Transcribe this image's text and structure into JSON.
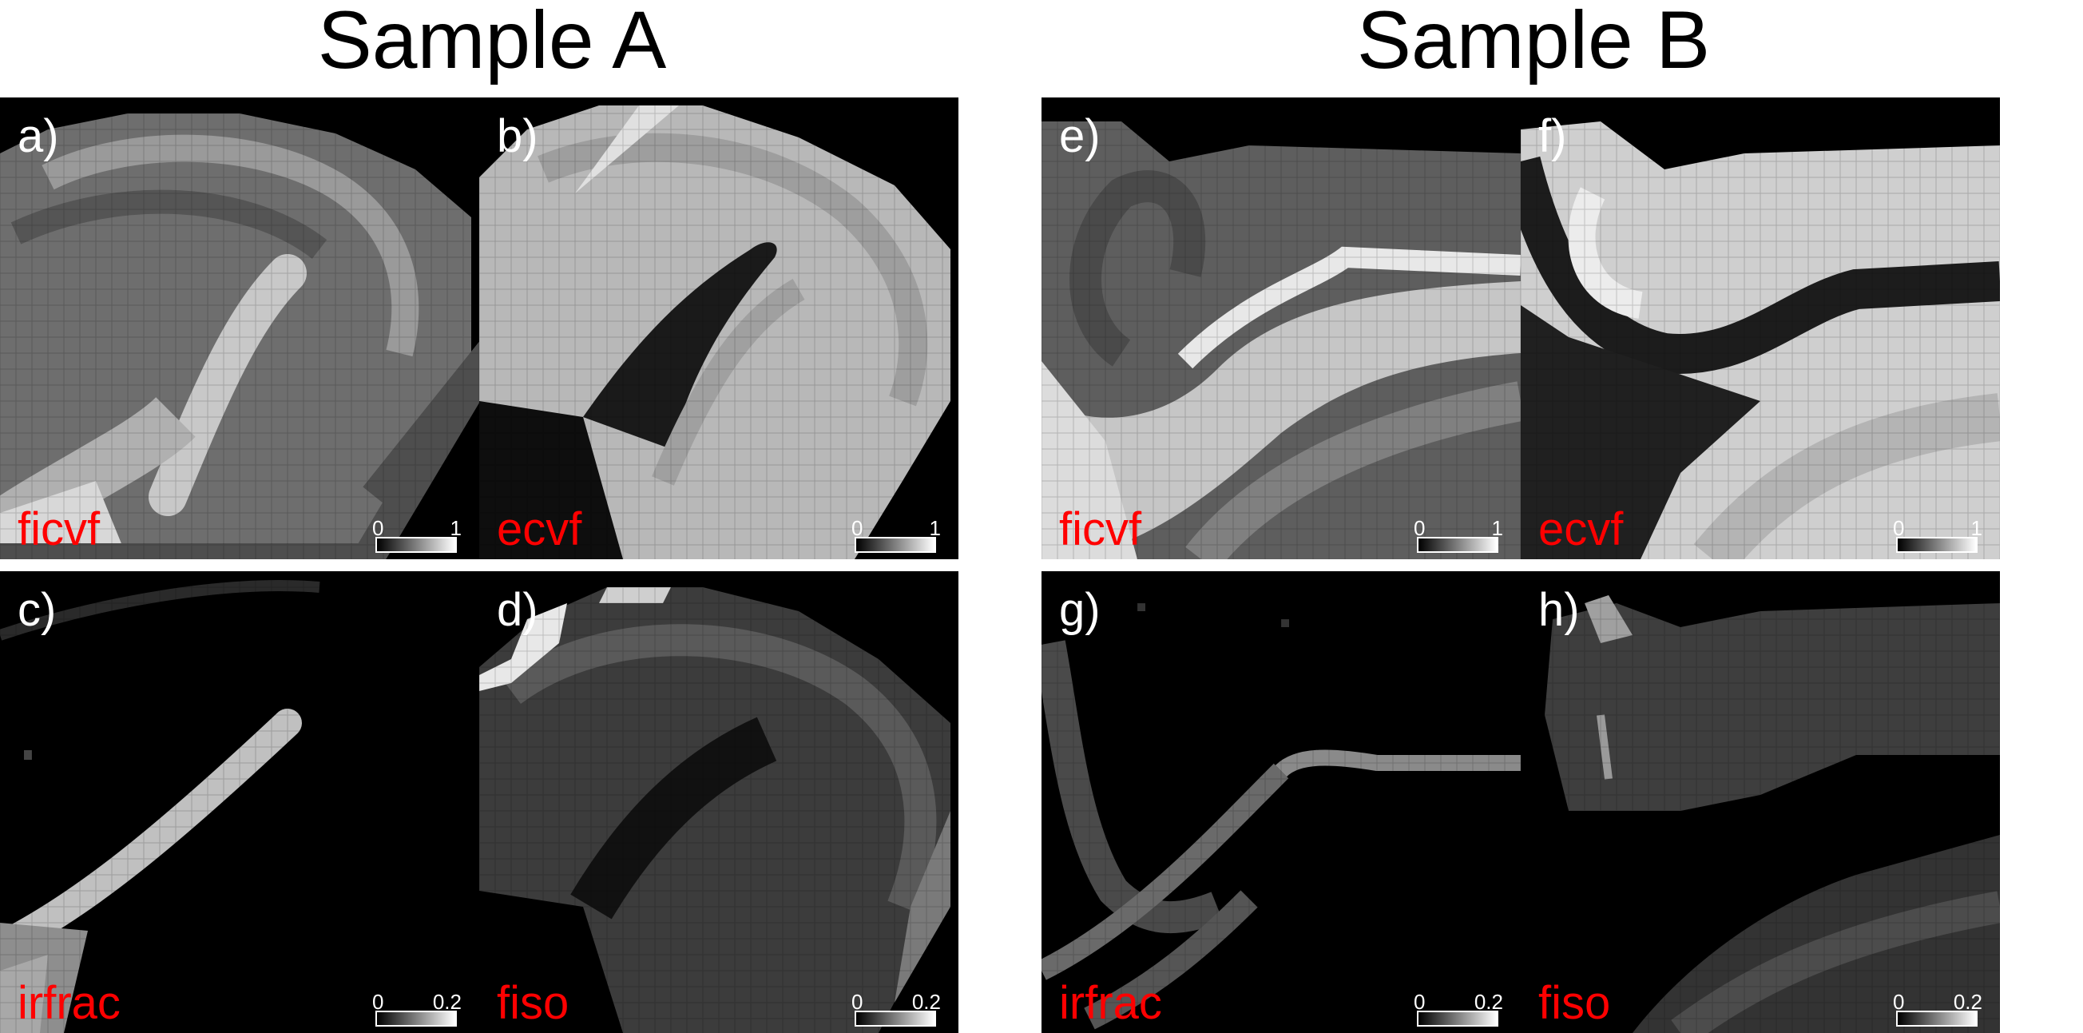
{
  "titles": {
    "sample_a": "Sample A",
    "sample_b": "Sample B"
  },
  "panels": [
    {
      "letter": "a)",
      "metric": "ficvf",
      "cmin": "0",
      "cmax": "1"
    },
    {
      "letter": "b)",
      "metric": "ecvf",
      "cmin": "0",
      "cmax": "1"
    },
    {
      "letter": "c)",
      "metric": "irfrac",
      "cmin": "0",
      "cmax": "0.2"
    },
    {
      "letter": "d)",
      "metric": "fiso",
      "cmin": "0",
      "cmax": "0.2"
    },
    {
      "letter": "e)",
      "metric": "ficvf",
      "cmin": "0",
      "cmax": "1"
    },
    {
      "letter": "f)",
      "metric": "ecvf",
      "cmin": "0",
      "cmax": "1"
    },
    {
      "letter": "g)",
      "metric": "irfrac",
      "cmin": "0",
      "cmax": "0.2"
    },
    {
      "letter": "h)",
      "metric": "fiso",
      "cmin": "0",
      "cmax": "0.2"
    }
  ],
  "colors": {
    "label": "#ff0000",
    "letter": "#ffffff",
    "background": "#000000"
  }
}
